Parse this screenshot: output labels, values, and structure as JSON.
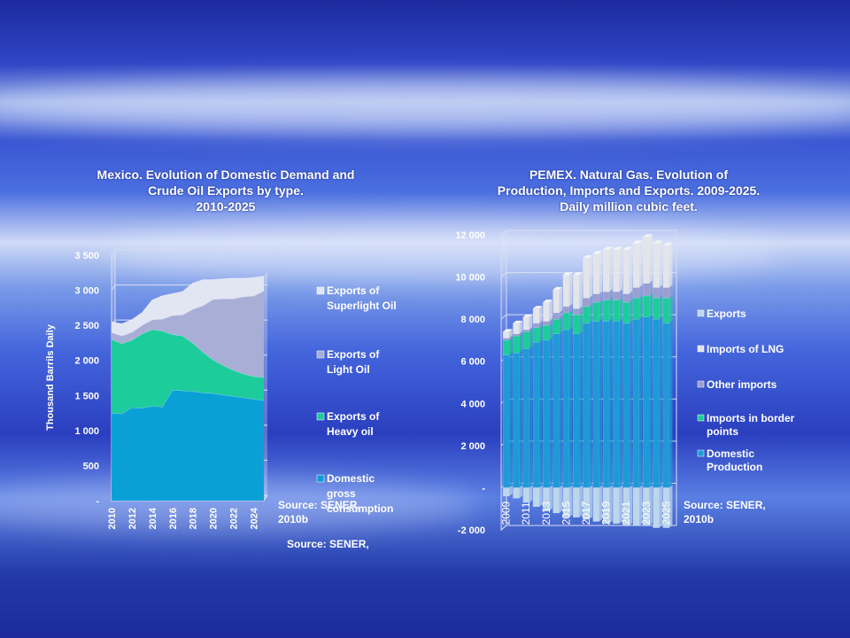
{
  "chart_data": [
    {
      "type": "area",
      "title_lines": [
        "Mexico. Evolution of Domestic Demand and",
        "Crude Oil Exports by type.",
        "2010-2025"
      ],
      "ylabel": "Thousand Barrils Daily",
      "yticks": [
        "-",
        "500",
        "1 000",
        "1 500",
        "2 000",
        "2 500",
        "3 000",
        "3 500"
      ],
      "ylim": [
        0,
        3500
      ],
      "x": [
        2010,
        2011,
        2012,
        2013,
        2014,
        2015,
        2016,
        2017,
        2018,
        2019,
        2020,
        2021,
        2022,
        2023,
        2024,
        2025
      ],
      "xtick_labels": [
        "2010",
        "2012",
        "2014",
        "2016",
        "2018",
        "2020",
        "2022",
        "2024"
      ],
      "stacked": true,
      "series": [
        {
          "name": "Domestic gross consumption",
          "color": "#0aa0d6",
          "values": [
            1250,
            1240,
            1330,
            1320,
            1350,
            1340,
            1580,
            1570,
            1560,
            1540,
            1530,
            1510,
            1490,
            1470,
            1450,
            1430
          ]
        },
        {
          "name": "Exports of Heavy oil",
          "color": "#1ccc9a",
          "values": [
            1050,
            1000,
            960,
            1060,
            1090,
            1080,
            790,
            780,
            690,
            580,
            480,
            420,
            370,
            340,
            320,
            330
          ]
        },
        {
          "name": "Exports of Light Oil",
          "color": "#a9aed6",
          "values": [
            100,
            110,
            110,
            120,
            140,
            170,
            270,
            300,
            480,
            660,
            860,
            950,
            1020,
            1100,
            1150,
            1230
          ]
        },
        {
          "name": "Exports of Superlight Oil",
          "color": "#e2e6f2",
          "values": [
            150,
            170,
            180,
            180,
            280,
            330,
            310,
            330,
            370,
            370,
            280,
            280,
            290,
            260,
            260,
            210
          ]
        }
      ],
      "source_lines": [
        "Source: SENER,",
        "2010b"
      ],
      "source_repeat": "Source: SENER,"
    },
    {
      "type": "bar",
      "title_lines": [
        "PEMEX. Natural Gas. Evolution of",
        "Production, Imports and Exports. 2009-2025.",
        "Daily million cubic feet."
      ],
      "yticks": [
        "-2 000",
        "-",
        "2 000",
        "4 000",
        "6 000",
        "8 000",
        "10 000",
        "12 000"
      ],
      "ylim": [
        -2000,
        12000
      ],
      "categories": [
        "2009",
        "2010",
        "2011",
        "2012",
        "2013",
        "2014",
        "2015",
        "2016",
        "2017",
        "2018",
        "2019",
        "2020",
        "2021",
        "2022",
        "2023",
        "2024",
        "2025"
      ],
      "xtick_labels": [
        "2009",
        "2011",
        "2013",
        "2015",
        "2017",
        "2019",
        "2021",
        "2023",
        "2025"
      ],
      "stacked": true,
      "series": [
        {
          "name": "Domestic Production",
          "color": "#1e9ad6",
          "values": [
            6300,
            6400,
            6600,
            6900,
            7000,
            7300,
            7500,
            7300,
            7800,
            7900,
            7900,
            7900,
            7800,
            8000,
            8100,
            8000,
            7800
          ]
        },
        {
          "name": "Imports in border points",
          "color": "#1ccc9a",
          "values": [
            700,
            800,
            800,
            700,
            700,
            700,
            800,
            900,
            800,
            900,
            1000,
            1000,
            1000,
            1000,
            1000,
            1000,
            1200
          ]
        },
        {
          "name": "Other imports",
          "color": "#9a9fd0",
          "values": [
            100,
            100,
            100,
            200,
            200,
            300,
            300,
            300,
            400,
            400,
            400,
            400,
            400,
            500,
            600,
            500,
            500
          ]
        },
        {
          "name": "Imports of LNG",
          "color": "#e3e5ea",
          "values": [
            300,
            500,
            600,
            700,
            900,
            1100,
            1500,
            1600,
            1900,
            1900,
            2000,
            2000,
            2100,
            2100,
            2200,
            2100,
            2000
          ]
        },
        {
          "name": "Exports",
          "color": "#bcd6ec",
          "values": [
            -400,
            -500,
            -700,
            -900,
            -1100,
            -1200,
            -1400,
            -1400,
            -1500,
            -1600,
            -1700,
            -1700,
            -1800,
            -1800,
            -1800,
            -1900,
            -1900
          ]
        }
      ],
      "legend_order": [
        "Exports",
        "Imports of LNG",
        "Other imports",
        "Imports in border points",
        "Domestic Production"
      ],
      "source_lines": [
        "Source: SENER,",
        "2010b"
      ]
    }
  ]
}
